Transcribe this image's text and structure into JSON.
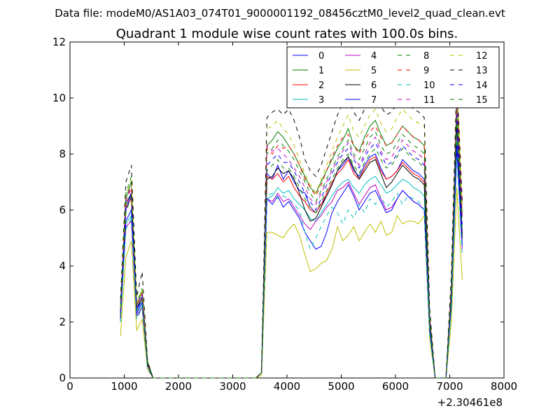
{
  "header": {
    "datafile": "Data file: modeM0/AS1A03_074T01_9000001192_08456cztM0_level2_quad_clean.evt"
  },
  "chart_data": {
    "type": "line",
    "title": "Quadrant 1 module wise count rates with 100.0s bins.",
    "xlabel": "",
    "ylabel": "",
    "x_offset_label": "+2.30461e8",
    "xlim": [
      0,
      8000
    ],
    "ylim": [
      0,
      12
    ],
    "xticks": [
      0,
      1000,
      2000,
      3000,
      4000,
      5000,
      6000,
      7000,
      8000
    ],
    "yticks": [
      0,
      2,
      4,
      6,
      8,
      10,
      12
    ],
    "legend_position": "top-right",
    "legend_columns": 4,
    "x": [
      930,
      1030,
      1130,
      1230,
      1330,
      1430,
      1530,
      1630,
      1730,
      1830,
      1930,
      2030,
      2130,
      2230,
      2330,
      2430,
      2530,
      2630,
      2730,
      2830,
      2930,
      3030,
      3130,
      3230,
      3330,
      3430,
      3530,
      3630,
      3730,
      3830,
      3930,
      4030,
      4130,
      4230,
      4330,
      4430,
      4530,
      4630,
      4730,
      4830,
      4930,
      5030,
      5130,
      5230,
      5330,
      5430,
      5530,
      5630,
      5730,
      5830,
      5930,
      6030,
      6130,
      6230,
      6330,
      6430,
      6530,
      6630,
      6730,
      6830,
      6930,
      7030,
      7130,
      7230
    ],
    "series": [
      {
        "name": "0",
        "color": "#0000ff",
        "dash": "solid",
        "values": [
          2.2,
          6.0,
          6.6,
          2.4,
          2.8,
          0.5,
          0.0,
          0,
          0,
          0,
          0,
          0,
          0,
          0,
          0,
          0,
          0,
          0,
          0,
          0,
          0,
          0,
          0,
          0,
          0,
          0,
          0.2,
          7.3,
          7.1,
          7.6,
          7.1,
          7.4,
          7.0,
          6.7,
          6.6,
          6.1,
          5.9,
          6.2,
          6.5,
          6.9,
          7.4,
          7.6,
          7.9,
          7.4,
          7.2,
          7.6,
          7.9,
          8.0,
          7.5,
          7.1,
          7.2,
          7.4,
          7.8,
          7.6,
          7.4,
          7.3,
          7.1,
          2.0,
          0.0,
          0.0,
          0.0,
          3.0,
          9.0,
          5.2
        ]
      },
      {
        "name": "1",
        "color": "#008000",
        "dash": "solid",
        "values": [
          2.5,
          6.4,
          7.0,
          2.6,
          3.1,
          0.6,
          0.0,
          0,
          0,
          0,
          0,
          0,
          0,
          0,
          0,
          0,
          0,
          0,
          0,
          0,
          0,
          0,
          0,
          0,
          0,
          0,
          0.2,
          8.3,
          8.5,
          8.8,
          8.6,
          8.3,
          8.0,
          7.6,
          7.2,
          6.8,
          6.6,
          7.0,
          7.4,
          7.8,
          8.2,
          8.5,
          8.9,
          8.3,
          8.1,
          8.6,
          9.0,
          9.2,
          8.7,
          8.3,
          8.4,
          8.7,
          9.0,
          8.8,
          8.6,
          8.5,
          8.3,
          2.2,
          0.0,
          0.0,
          0.0,
          3.3,
          10.1,
          5.8
        ]
      },
      {
        "name": "2",
        "color": "#ff0000",
        "dash": "solid",
        "values": [
          2.3,
          6.1,
          6.4,
          2.5,
          2.9,
          0.5,
          0.0,
          0,
          0,
          0,
          0,
          0,
          0,
          0,
          0,
          0,
          0,
          0,
          0,
          0,
          0,
          0,
          0,
          0,
          0,
          0,
          0.2,
          7.2,
          7.1,
          7.3,
          7.0,
          7.2,
          6.8,
          6.5,
          6.3,
          6.0,
          5.9,
          6.2,
          6.6,
          7.0,
          7.3,
          7.5,
          7.8,
          7.3,
          7.1,
          7.5,
          7.8,
          7.9,
          7.4,
          7.1,
          7.2,
          7.4,
          7.7,
          7.5,
          7.3,
          7.2,
          7.0,
          1.9,
          0.0,
          0.0,
          0.0,
          2.9,
          9.2,
          5.1
        ]
      },
      {
        "name": "3",
        "color": "#00bfbf",
        "dash": "solid",
        "values": [
          2.0,
          5.5,
          5.8,
          2.2,
          2.6,
          0.4,
          0.0,
          0,
          0,
          0,
          0,
          0,
          0,
          0,
          0,
          0,
          0,
          0,
          0,
          0,
          0,
          0,
          0,
          0,
          0,
          0,
          0.2,
          6.4,
          6.5,
          6.8,
          6.6,
          6.7,
          6.4,
          6.2,
          6.0,
          5.7,
          5.6,
          5.9,
          6.2,
          6.5,
          6.8,
          7.0,
          7.1,
          6.8,
          6.6,
          6.9,
          7.1,
          7.2,
          6.9,
          6.6,
          6.7,
          6.9,
          7.1,
          7.0,
          6.8,
          6.7,
          6.5,
          1.8,
          0.0,
          0.0,
          0.0,
          2.7,
          8.4,
          4.8
        ]
      },
      {
        "name": "4",
        "color": "#bf00bf",
        "dash": "solid",
        "values": [
          2.1,
          5.4,
          5.6,
          2.2,
          2.5,
          0.4,
          0.0,
          0,
          0,
          0,
          0,
          0,
          0,
          0,
          0,
          0,
          0,
          0,
          0,
          0,
          0,
          0,
          0,
          0,
          0,
          0,
          0.2,
          6.4,
          6.3,
          6.6,
          6.3,
          6.4,
          6.1,
          5.8,
          5.5,
          5.3,
          5.6,
          5.8,
          6.1,
          6.3,
          6.7,
          6.8,
          7.0,
          6.6,
          6.2,
          6.5,
          6.8,
          6.9,
          6.4,
          6.0,
          6.1,
          6.4,
          6.7,
          6.5,
          6.3,
          6.2,
          6.0,
          1.7,
          0.0,
          0.0,
          0.0,
          2.6,
          8.2,
          4.6
        ]
      },
      {
        "name": "5",
        "color": "#bfbf00",
        "dash": "solid",
        "values": [
          1.5,
          4.3,
          4.9,
          1.7,
          2.1,
          0.3,
          0.0,
          0,
          0,
          0,
          0,
          0,
          0,
          0,
          0,
          0,
          0,
          0,
          0,
          0,
          0,
          0,
          0,
          0,
          0,
          0,
          0.1,
          5.2,
          5.2,
          5.1,
          5.0,
          5.3,
          5.5,
          5.1,
          4.4,
          3.8,
          3.9,
          4.1,
          4.2,
          4.6,
          5.4,
          4.9,
          5.1,
          5.4,
          4.9,
          5.2,
          5.5,
          5.2,
          5.6,
          5.1,
          5.2,
          5.8,
          5.5,
          5.6,
          5.6,
          5.5,
          5.8,
          1.4,
          0.0,
          0.0,
          0.0,
          2.0,
          6.8,
          3.5
        ]
      },
      {
        "name": "6",
        "color": "#000000",
        "dash": "solid",
        "values": [
          2.3,
          6.2,
          6.6,
          2.5,
          2.9,
          0.5,
          0.0,
          0,
          0,
          0,
          0,
          0,
          0,
          0,
          0,
          0,
          0,
          0,
          0,
          0,
          0,
          0,
          0,
          0,
          0,
          0,
          0.2,
          7.1,
          7.2,
          7.5,
          7.3,
          7.4,
          7.1,
          6.6,
          6.0,
          5.6,
          5.7,
          6.1,
          6.5,
          6.9,
          7.4,
          7.7,
          7.9,
          7.5,
          7.1,
          7.4,
          7.7,
          7.8,
          7.3,
          6.8,
          7.0,
          7.3,
          7.6,
          7.4,
          7.2,
          7.1,
          6.9,
          1.9,
          0.0,
          0.0,
          0.0,
          2.9,
          9.1,
          5.0
        ]
      },
      {
        "name": "7",
        "color": "#0000ff",
        "dash": "solid",
        "values": [
          2.1,
          5.6,
          6.0,
          2.3,
          2.7,
          0.4,
          0.0,
          0,
          0,
          0,
          0,
          0,
          0,
          0,
          0,
          0,
          0,
          0,
          0,
          0,
          0,
          0,
          0,
          0,
          0,
          0,
          0.2,
          6.4,
          6.2,
          6.5,
          6.1,
          6.3,
          6.0,
          5.7,
          5.2,
          4.9,
          4.6,
          4.7,
          5.2,
          5.9,
          6.3,
          6.6,
          6.9,
          6.5,
          6.0,
          6.3,
          6.6,
          6.7,
          6.3,
          5.9,
          6.0,
          6.4,
          6.7,
          6.5,
          6.3,
          6.2,
          6.0,
          1.7,
          0.0,
          0.0,
          0.0,
          2.6,
          8.3,
          4.7
        ]
      },
      {
        "name": "8",
        "color": "#008000",
        "dash": "dashed",
        "values": [
          2.6,
          6.6,
          7.2,
          2.7,
          3.2,
          0.6,
          0.0,
          0,
          0,
          0,
          0,
          0,
          0,
          0,
          0,
          0,
          0,
          0,
          0,
          0,
          0,
          0,
          0,
          0,
          0,
          0,
          0.2,
          8.0,
          8.2,
          8.5,
          8.3,
          8.1,
          7.8,
          7.4,
          7.0,
          6.6,
          6.3,
          6.7,
          7.1,
          7.5,
          7.9,
          8.2,
          8.5,
          8.0,
          7.8,
          8.2,
          8.6,
          8.8,
          8.3,
          8.0,
          8.1,
          8.4,
          8.7,
          8.5,
          8.3,
          8.2,
          8.0,
          2.1,
          0.0,
          0.0,
          0.0,
          3.2,
          9.9,
          5.6
        ]
      },
      {
        "name": "9",
        "color": "#ff0000",
        "dash": "dashed",
        "values": [
          2.4,
          6.3,
          6.8,
          2.6,
          3.0,
          0.5,
          0.0,
          0,
          0,
          0,
          0,
          0,
          0,
          0,
          0,
          0,
          0,
          0,
          0,
          0,
          0,
          0,
          0,
          0,
          0,
          0,
          0.2,
          8.2,
          8.0,
          8.3,
          8.2,
          8.3,
          8.0,
          7.6,
          7.1,
          6.8,
          6.5,
          6.9,
          7.4,
          7.9,
          8.3,
          8.6,
          8.7,
          8.3,
          8.0,
          8.5,
          8.8,
          9.0,
          8.6,
          8.3,
          8.4,
          8.7,
          9.0,
          8.8,
          8.6,
          8.5,
          8.3,
          2.2,
          0.0,
          0.0,
          0.0,
          3.3,
          10.0,
          5.7
        ]
      },
      {
        "name": "10",
        "color": "#00bfbf",
        "dash": "dashed",
        "values": [
          2.0,
          5.3,
          5.7,
          2.1,
          2.5,
          0.4,
          0.0,
          0,
          0,
          0,
          0,
          0,
          0,
          0,
          0,
          0,
          0,
          0,
          0,
          0,
          0,
          0,
          0,
          0,
          0,
          0,
          0.2,
          6.5,
          6.6,
          6.4,
          6.5,
          6.4,
          6.2,
          6.0,
          5.2,
          4.6,
          5.0,
          5.4,
          5.8,
          6.1,
          5.9,
          5.5,
          6.0,
          5.7,
          6.2,
          5.9,
          6.4,
          6.2,
          6.5,
          6.1,
          6.3,
          6.6,
          6.2,
          6.5,
          6.4,
          6.3,
          6.0,
          1.6,
          0.0,
          0.0,
          0.0,
          2.5,
          7.9,
          4.4
        ]
      },
      {
        "name": "11",
        "color": "#bf00bf",
        "dash": "dashed",
        "values": [
          2.4,
          6.3,
          6.9,
          2.6,
          3.0,
          0.5,
          0.0,
          0,
          0,
          0,
          0,
          0,
          0,
          0,
          0,
          0,
          0,
          0,
          0,
          0,
          0,
          0,
          0,
          0,
          0,
          0,
          0.2,
          8.3,
          8.1,
          8.2,
          8.0,
          7.8,
          7.5,
          7.2,
          6.8,
          6.4,
          6.2,
          6.6,
          7.0,
          7.4,
          7.8,
          8.1,
          8.4,
          7.9,
          7.6,
          8.0,
          8.4,
          8.6,
          8.1,
          7.8,
          7.9,
          8.2,
          8.5,
          8.3,
          8.1,
          8.0,
          7.8,
          2.1,
          0.0,
          0.0,
          0.0,
          3.2,
          9.8,
          5.5
        ]
      },
      {
        "name": "12",
        "color": "#bfbf00",
        "dash": "dashed",
        "values": [
          2.5,
          6.5,
          7.1,
          2.7,
          3.2,
          0.6,
          0.0,
          0,
          0,
          0,
          0,
          0,
          0,
          0,
          0,
          0,
          0,
          0,
          0,
          0,
          0,
          0,
          0,
          0,
          0,
          0,
          0.2,
          8.9,
          9.0,
          9.2,
          8.9,
          8.7,
          8.3,
          7.8,
          7.3,
          6.9,
          6.6,
          7.1,
          7.6,
          8.1,
          8.6,
          9.0,
          9.4,
          8.8,
          8.6,
          9.0,
          9.4,
          9.6,
          9.1,
          8.8,
          8.9,
          9.3,
          9.6,
          9.4,
          9.2,
          9.1,
          9.0,
          2.4,
          0.0,
          0.0,
          0.0,
          3.5,
          10.6,
          6.1
        ]
      },
      {
        "name": "13",
        "color": "#000000",
        "dash": "dashed",
        "values": [
          2.8,
          7.0,
          7.6,
          2.9,
          3.8,
          0.6,
          0.0,
          0,
          0,
          0,
          0,
          0,
          0,
          0,
          0,
          0,
          0,
          0,
          0,
          0,
          0,
          0,
          0,
          0,
          0,
          0,
          0.2,
          9.3,
          9.5,
          9.6,
          9.4,
          9.6,
          9.2,
          8.6,
          7.8,
          7.4,
          7.2,
          7.6,
          8.2,
          8.8,
          9.4,
          9.8,
          9.9,
          9.5,
          9.2,
          9.6,
          9.9,
          10.0,
          9.7,
          9.4,
          9.5,
          9.8,
          10.0,
          9.8,
          9.6,
          9.5,
          9.3,
          2.5,
          0.0,
          0.0,
          0.0,
          3.7,
          10.8,
          6.3
        ]
      },
      {
        "name": "14",
        "color": "#0000ff",
        "dash": "dashed",
        "values": [
          2.3,
          6.0,
          6.6,
          2.4,
          2.9,
          0.5,
          0.0,
          0,
          0,
          0,
          0,
          0,
          0,
          0,
          0,
          0,
          0,
          0,
          0,
          0,
          0,
          0,
          0,
          0,
          0,
          0,
          0.2,
          7.6,
          7.8,
          8.0,
          7.7,
          7.7,
          7.4,
          7.0,
          6.6,
          6.3,
          6.0,
          6.4,
          6.9,
          7.3,
          7.7,
          8.0,
          8.2,
          7.8,
          7.5,
          7.9,
          8.2,
          8.4,
          8.0,
          7.6,
          7.7,
          8.0,
          8.3,
          8.1,
          7.9,
          7.8,
          7.6,
          2.0,
          0.0,
          0.0,
          0.0,
          3.0,
          9.4,
          5.3
        ]
      },
      {
        "name": "15",
        "color": "#008000",
        "dash": "dashed",
        "values": [
          2.2,
          5.9,
          6.5,
          2.4,
          2.8,
          0.5,
          0.0,
          0,
          0,
          0,
          0,
          0,
          0,
          0,
          0,
          0,
          0,
          0,
          0,
          0,
          0,
          0,
          0,
          0,
          0,
          0,
          0.2,
          7.4,
          7.6,
          7.8,
          7.5,
          7.5,
          7.2,
          6.8,
          6.4,
          6.1,
          5.9,
          6.3,
          6.7,
          7.1,
          7.5,
          7.8,
          8.0,
          7.6,
          7.3,
          7.7,
          8.0,
          8.2,
          7.8,
          7.5,
          7.6,
          7.9,
          8.2,
          8.0,
          7.8,
          7.7,
          7.5,
          2.0,
          0.0,
          0.0,
          0.0,
          2.9,
          9.3,
          5.2
        ]
      }
    ]
  }
}
